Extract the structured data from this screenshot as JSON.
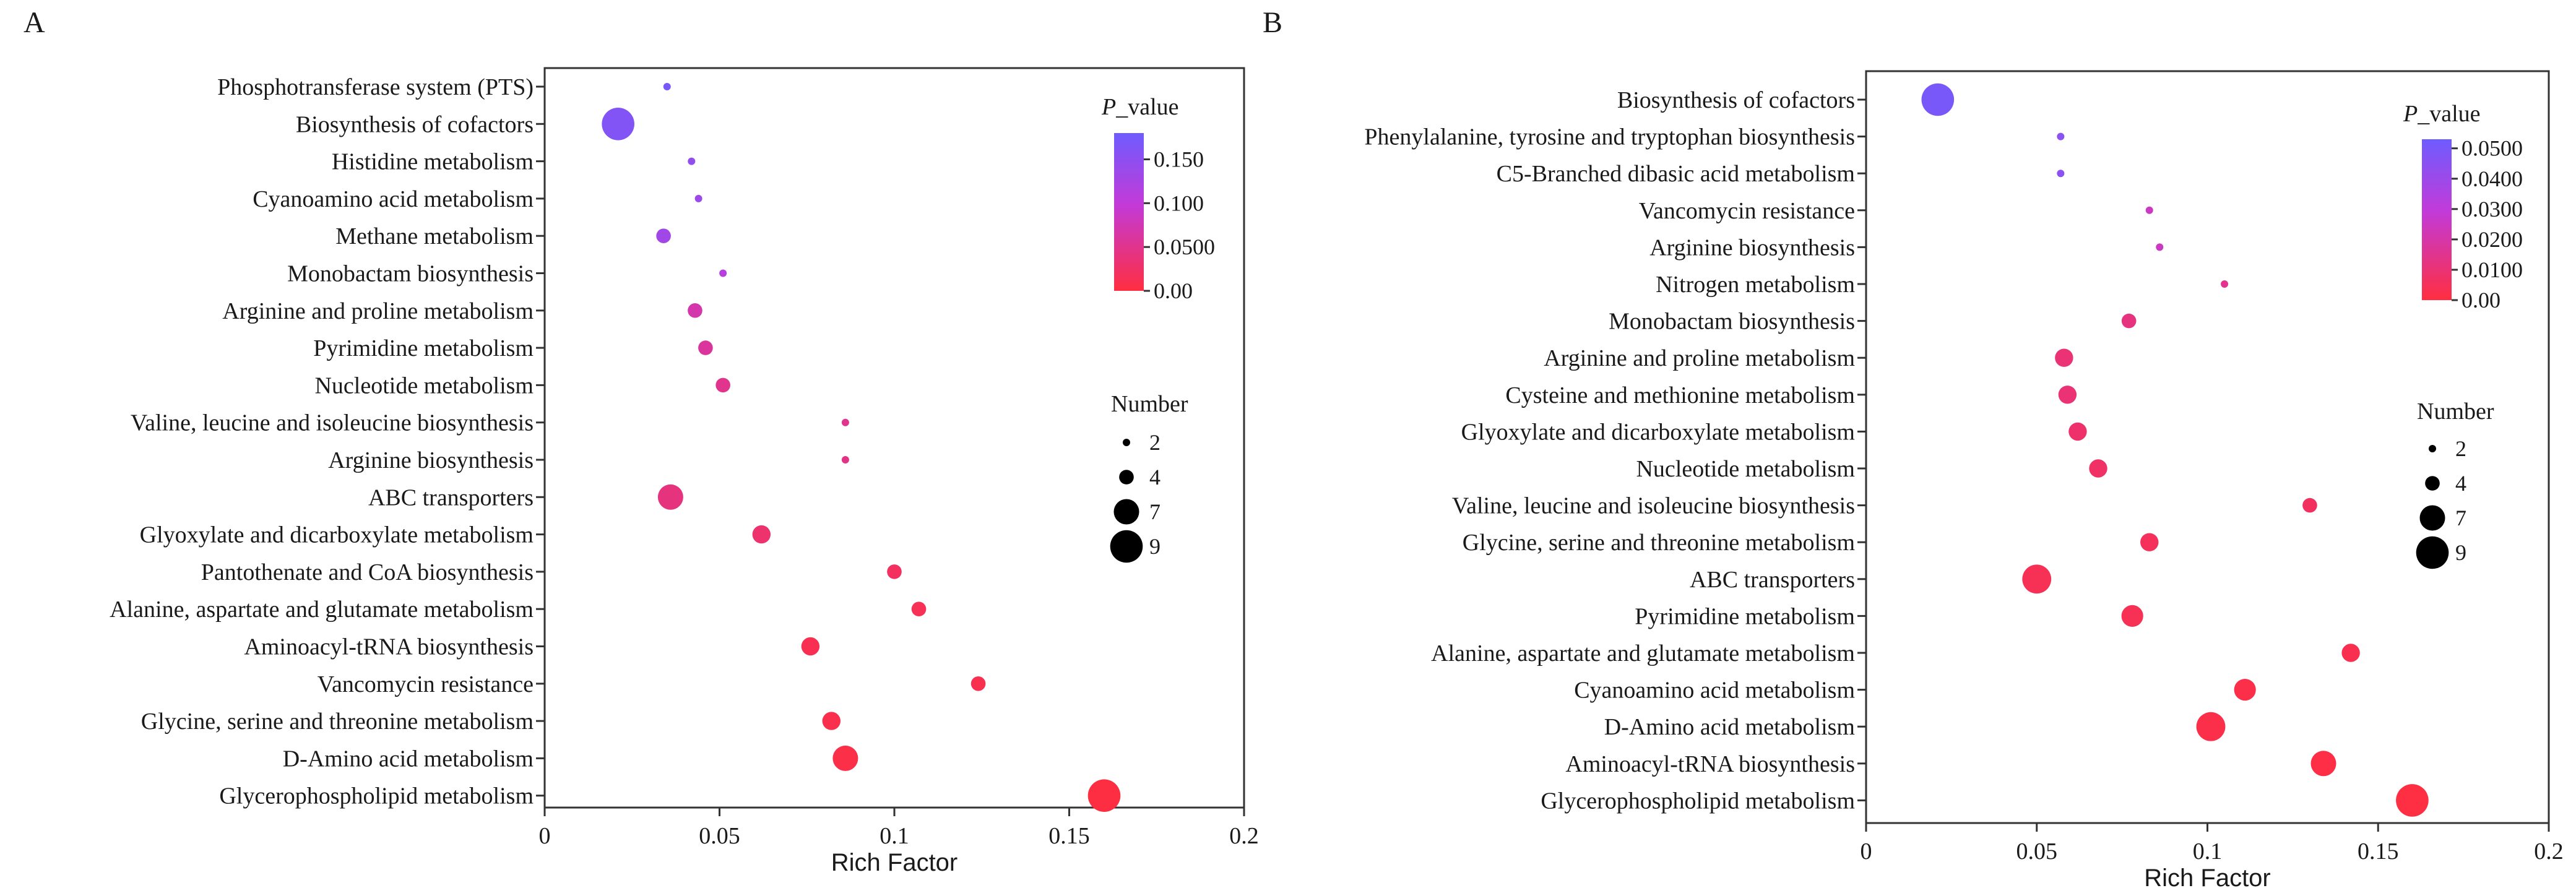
{
  "chart_data": [
    {
      "type": "scatter",
      "panel_label": "A",
      "xlabel": "Rich Factor",
      "xlim": [
        0,
        0.2
      ],
      "xticks": [
        "0",
        "0.05",
        "0.1",
        "0.15",
        "0.2"
      ],
      "color_legend": {
        "title_italic": "P",
        "title_rest": "_value",
        "ticks": [
          "0.150",
          "0.100",
          "0.0500",
          "0.00"
        ],
        "max": 0.18
      },
      "size_legend": {
        "title": "Number",
        "values": [
          2,
          4,
          7,
          9
        ]
      },
      "points": [
        {
          "pathway": "Phosphotransferase system (PTS)",
          "rich_factor": 0.035,
          "count": 2,
          "p_value": 0.17
        },
        {
          "pathway": "Biosynthesis of cofactors",
          "rich_factor": 0.021,
          "count": 9,
          "p_value": 0.16
        },
        {
          "pathway": "Histidine metabolism",
          "rich_factor": 0.042,
          "count": 2,
          "p_value": 0.145
        },
        {
          "pathway": "Cyanoamino acid metabolism",
          "rich_factor": 0.044,
          "count": 2,
          "p_value": 0.135
        },
        {
          "pathway": "Methane metabolism",
          "rich_factor": 0.034,
          "count": 4,
          "p_value": 0.13
        },
        {
          "pathway": "Monobactam biosynthesis",
          "rich_factor": 0.051,
          "count": 2,
          "p_value": 0.11
        },
        {
          "pathway": "Arginine and proline metabolism",
          "rich_factor": 0.043,
          "count": 4,
          "p_value": 0.07
        },
        {
          "pathway": "Pyrimidine metabolism",
          "rich_factor": 0.046,
          "count": 4,
          "p_value": 0.06
        },
        {
          "pathway": "Nucleotide metabolism",
          "rich_factor": 0.051,
          "count": 4,
          "p_value": 0.05
        },
        {
          "pathway": "Valine, leucine and isoleucine biosynthesis",
          "rich_factor": 0.086,
          "count": 2,
          "p_value": 0.05
        },
        {
          "pathway": "Arginine biosynthesis",
          "rich_factor": 0.086,
          "count": 2,
          "p_value": 0.045
        },
        {
          "pathway": "ABC transporters",
          "rich_factor": 0.036,
          "count": 7,
          "p_value": 0.04
        },
        {
          "pathway": "Glyoxylate and dicarboxylate metabolism",
          "rich_factor": 0.062,
          "count": 5,
          "p_value": 0.03
        },
        {
          "pathway": "Pantothenate and CoA biosynthesis",
          "rich_factor": 0.1,
          "count": 4,
          "p_value": 0.02
        },
        {
          "pathway": "Alanine, aspartate and glutamate metabolism",
          "rich_factor": 0.107,
          "count": 4,
          "p_value": 0.015
        },
        {
          "pathway": "Aminoacyl-tRNA biosynthesis",
          "rich_factor": 0.076,
          "count": 5,
          "p_value": 0.012
        },
        {
          "pathway": "Vancomycin resistance",
          "rich_factor": 0.124,
          "count": 4,
          "p_value": 0.01
        },
        {
          "pathway": "Glycine, serine and threonine metabolism",
          "rich_factor": 0.082,
          "count": 5,
          "p_value": 0.008
        },
        {
          "pathway": "D-Amino acid metabolism",
          "rich_factor": 0.086,
          "count": 7,
          "p_value": 0.005
        },
        {
          "pathway": "Glycerophospholipid metabolism",
          "rich_factor": 0.16,
          "count": 9,
          "p_value": 0.001
        }
      ]
    },
    {
      "type": "scatter",
      "panel_label": "B",
      "xlabel": "Rich Factor",
      "xlim": [
        0,
        0.2
      ],
      "xticks": [
        "0",
        "0.05",
        "0.1",
        "0.15",
        "0.2"
      ],
      "color_legend": {
        "title_italic": "P",
        "title_rest": "_value",
        "ticks": [
          "0.0500",
          "0.0400",
          "0.0300",
          "0.0200",
          "0.0100",
          "0.00"
        ],
        "max": 0.053
      },
      "size_legend": {
        "title": "Number",
        "values": [
          2,
          4,
          7,
          9
        ]
      },
      "points": [
        {
          "pathway": "Biosynthesis of cofactors",
          "rich_factor": 0.021,
          "count": 9,
          "p_value": 0.05
        },
        {
          "pathway": "Phenylalanine, tyrosine and tryptophan biosynthesis",
          "rich_factor": 0.057,
          "count": 2,
          "p_value": 0.045
        },
        {
          "pathway": "C5-Branched dibasic acid metabolism",
          "rich_factor": 0.057,
          "count": 2,
          "p_value": 0.045
        },
        {
          "pathway": "Vancomycin resistance",
          "rich_factor": 0.083,
          "count": 2,
          "p_value": 0.025
        },
        {
          "pathway": "Arginine biosynthesis",
          "rich_factor": 0.086,
          "count": 2,
          "p_value": 0.025
        },
        {
          "pathway": "Nitrogen metabolism",
          "rich_factor": 0.105,
          "count": 2,
          "p_value": 0.015
        },
        {
          "pathway": "Monobactam biosynthesis",
          "rich_factor": 0.077,
          "count": 4,
          "p_value": 0.012
        },
        {
          "pathway": "Arginine and proline metabolism",
          "rich_factor": 0.058,
          "count": 5,
          "p_value": 0.01
        },
        {
          "pathway": "Cysteine and methionine metabolism",
          "rich_factor": 0.059,
          "count": 5,
          "p_value": 0.01
        },
        {
          "pathway": "Glyoxylate and dicarboxylate metabolism",
          "rich_factor": 0.062,
          "count": 5,
          "p_value": 0.008
        },
        {
          "pathway": "Nucleotide metabolism",
          "rich_factor": 0.068,
          "count": 5,
          "p_value": 0.007
        },
        {
          "pathway": "Valine, leucine and isoleucine biosynthesis",
          "rich_factor": 0.13,
          "count": 4,
          "p_value": 0.006
        },
        {
          "pathway": "Glycine, serine and threonine metabolism",
          "rich_factor": 0.083,
          "count": 5,
          "p_value": 0.005
        },
        {
          "pathway": "ABC transporters",
          "rich_factor": 0.05,
          "count": 8,
          "p_value": 0.004
        },
        {
          "pathway": "Pyrimidine metabolism",
          "rich_factor": 0.078,
          "count": 6,
          "p_value": 0.004
        },
        {
          "pathway": "Alanine, aspartate and glutamate metabolism",
          "rich_factor": 0.142,
          "count": 5,
          "p_value": 0.003
        },
        {
          "pathway": "Cyanoamino acid metabolism",
          "rich_factor": 0.111,
          "count": 6,
          "p_value": 0.002
        },
        {
          "pathway": "D-Amino acid metabolism",
          "rich_factor": 0.101,
          "count": 8,
          "p_value": 0.002
        },
        {
          "pathway": "Aminoacyl-tRNA biosynthesis",
          "rich_factor": 0.134,
          "count": 7,
          "p_value": 0.001
        },
        {
          "pathway": "Glycerophospholipid metabolism",
          "rich_factor": 0.16,
          "count": 9,
          "p_value": 0.0005
        }
      ]
    }
  ]
}
